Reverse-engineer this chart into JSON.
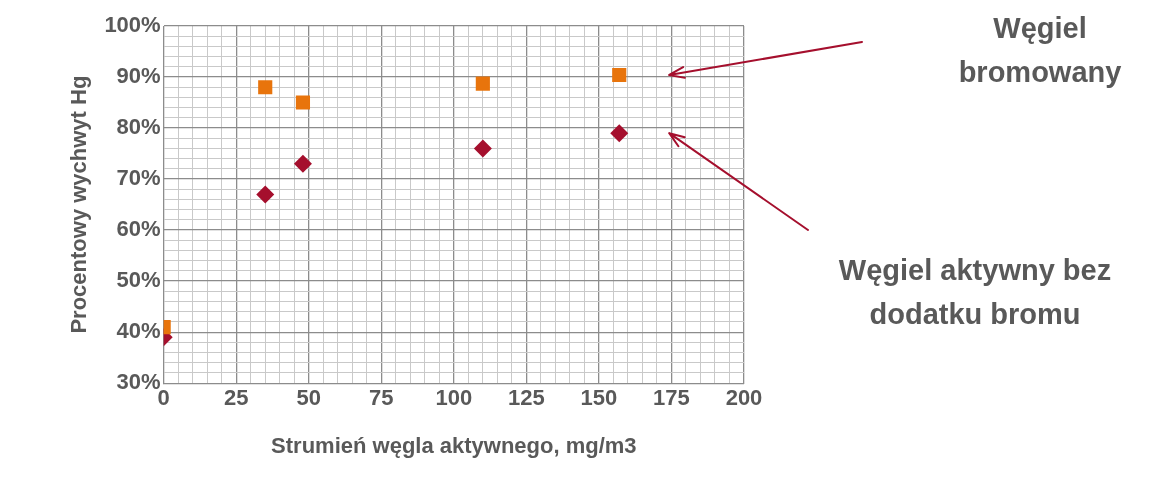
{
  "chart_data": {
    "type": "scatter",
    "xlabel": "Strumień węgla aktywnego, mg/m3",
    "ylabel": "Procentowy wychwyt Hg",
    "series": [
      {
        "name": "Węgiel bromowany",
        "color": "#e8740c",
        "marker": "square",
        "x": [
          0,
          35,
          48,
          110,
          157
        ],
        "values": [
          41,
          88,
          85,
          88.7,
          90.4
        ]
      },
      {
        "name": "Węgiel aktywny bez dodatku bromu",
        "color": "#a50f2d",
        "marker": "diamond",
        "x": [
          0,
          35,
          48,
          110,
          157
        ],
        "values": [
          39,
          67,
          73,
          76,
          79
        ]
      }
    ],
    "xlim": [
      0,
      200
    ],
    "ylim": [
      30,
      100
    ],
    "xticks": [
      0,
      {
        "value": 5,
        "label": null
      },
      {
        "value": 10,
        "label": null
      },
      {
        "value": 15,
        "label": null
      },
      {
        "value": 20,
        "label": null
      },
      25,
      {
        "value": 30,
        "label": null
      },
      {
        "value": 35,
        "label": null
      },
      {
        "value": 40,
        "label": null
      },
      {
        "value": 45,
        "label": null
      },
      50,
      {
        "value": 55,
        "label": null
      },
      {
        "value": 60,
        "label": null
      },
      {
        "value": 65,
        "label": null
      },
      {
        "value": 70,
        "label": null
      },
      75,
      {
        "value": 80,
        "label": null
      },
      {
        "value": 85,
        "label": null
      },
      {
        "value": 90,
        "label": null
      },
      {
        "value": 95,
        "label": null
      },
      100,
      {
        "value": 105,
        "label": null
      },
      {
        "value": 110,
        "label": null
      },
      {
        "value": 115,
        "label": null
      },
      {
        "value": 120,
        "label": null
      },
      125,
      {
        "value": 130,
        "label": null
      },
      {
        "value": 135,
        "label": null
      },
      {
        "value": 140,
        "label": null
      },
      {
        "value": 145,
        "label": null
      },
      150,
      {
        "value": 155,
        "label": null
      },
      {
        "value": 160,
        "label": null
      },
      {
        "value": 165,
        "label": null
      },
      {
        "value": 170,
        "label": null
      },
      175,
      {
        "value": 180,
        "label": null
      },
      {
        "value": 185,
        "label": null
      },
      {
        "value": 190,
        "label": null
      },
      {
        "value": 195,
        "label": null
      },
      200
    ],
    "yticks": [
      {
        "value": 30,
        "label": "30%"
      },
      {
        "value": 32,
        "label": null
      },
      {
        "value": 34,
        "label": null
      },
      {
        "value": 36,
        "label": null
      },
      {
        "value": 38,
        "label": null
      },
      {
        "value": 40,
        "label": "40%"
      },
      {
        "value": 42,
        "label": null
      },
      {
        "value": 44,
        "label": null
      },
      {
        "value": 46,
        "label": null
      },
      {
        "value": 48,
        "label": null
      },
      {
        "value": 50,
        "label": "50%"
      },
      {
        "value": 52,
        "label": null
      },
      {
        "value": 54,
        "label": null
      },
      {
        "value": 56,
        "label": null
      },
      {
        "value": 58,
        "label": null
      },
      {
        "value": 60,
        "label": "60%"
      },
      {
        "value": 62,
        "label": null
      },
      {
        "value": 64,
        "label": null
      },
      {
        "value": 66,
        "label": null
      },
      {
        "value": 68,
        "label": null
      },
      {
        "value": 70,
        "label": "70%"
      },
      {
        "value": 72,
        "label": null
      },
      {
        "value": 74,
        "label": null
      },
      {
        "value": 76,
        "label": null
      },
      {
        "value": 78,
        "label": null
      },
      {
        "value": 80,
        "label": "80%"
      },
      {
        "value": 82,
        "label": null
      },
      {
        "value": 84,
        "label": null
      },
      {
        "value": 86,
        "label": null
      },
      {
        "value": 88,
        "label": null
      },
      {
        "value": 90,
        "label": "90%"
      },
      {
        "value": 92,
        "label": null
      },
      {
        "value": 94,
        "label": null
      },
      {
        "value": 96,
        "label": null
      },
      {
        "value": 98,
        "label": null
      },
      {
        "value": 100,
        "label": "100%"
      }
    ],
    "grid": true,
    "legend": false
  }
}
